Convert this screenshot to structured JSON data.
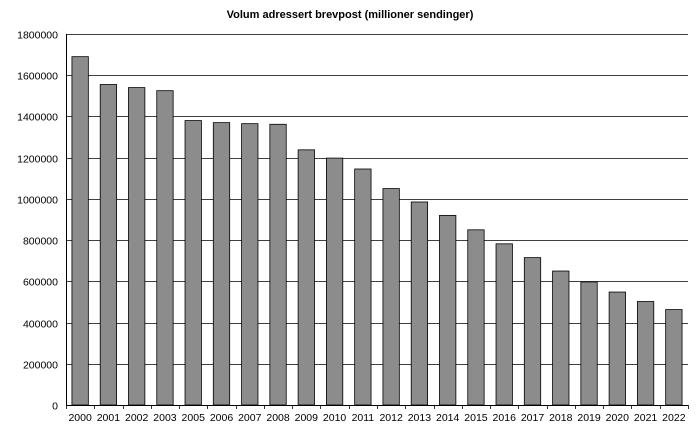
{
  "chart_data": {
    "type": "bar",
    "title": "Volum adressert brevpost (millioner sendinger)",
    "xlabel": "",
    "ylabel": "",
    "ylim": [
      0,
      1800000
    ],
    "yticks": [
      "0",
      "200000",
      "400000",
      "600000",
      "800000",
      "1000000",
      "1200000",
      "1400000",
      "1600000",
      "1800000"
    ],
    "grid": true,
    "legend": "none",
    "categories": [
      "2000",
      "2001",
      "2002",
      "2003",
      "2005",
      "2006",
      "2007",
      "2008",
      "2009",
      "2010",
      "2011",
      "2012",
      "2013",
      "2014",
      "2015",
      "2016",
      "2017",
      "2018",
      "2019",
      "2020",
      "2021",
      "2022"
    ],
    "values": [
      1690000,
      1555000,
      1540000,
      1525000,
      1380000,
      1370000,
      1365000,
      1362000,
      1238000,
      1198000,
      1145000,
      1050000,
      985000,
      920000,
      850000,
      782000,
      715000,
      650000,
      597000,
      548000,
      502000,
      463000
    ],
    "colors": {
      "bar_fill": "#8c8c8c",
      "bar_stroke": "#000000",
      "grid": "#000000"
    }
  }
}
